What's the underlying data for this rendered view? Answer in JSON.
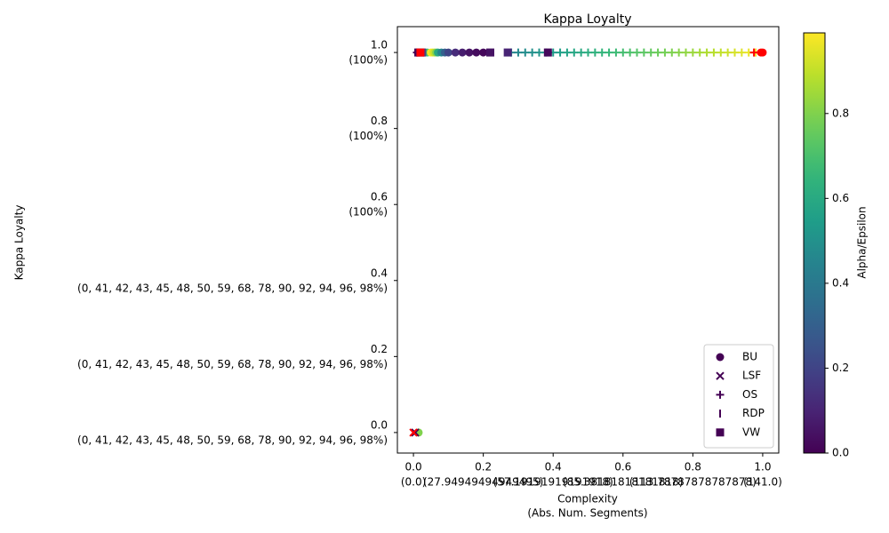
{
  "chart_data": {
    "type": "scatter",
    "title": "Kappa Loyalty",
    "xlabel": [
      "Complexity",
      "(Abs. Num. Segments)"
    ],
    "ylabel": "Kappa Loyalty",
    "xlim": [
      -0.046,
      1.046
    ],
    "ylim": [
      -0.054,
      1.068
    ],
    "xticks": [
      {
        "value": 0,
        "label": [
          "0.0",
          "(0.0)"
        ]
      },
      {
        "value": 0.2,
        "label": [
          "0.2",
          "(27.94949494949495)"
        ]
      },
      {
        "value": 0.4,
        "label": [
          "0.4",
          "(57.19191919191918)"
        ]
      },
      {
        "value": 0.6,
        "label": [
          "0.6",
          "(85.38181818181818)"
        ]
      },
      {
        "value": 0.8,
        "label": [
          "0.8",
          "(113.78787878787878)"
        ]
      },
      {
        "value": 1,
        "label": [
          "1.0",
          "(141.0)"
        ]
      }
    ],
    "yticks": [
      {
        "value": 0,
        "label": [
          "0.0",
          "(0, 41, 42, 43, 45, 48, 50, 59, 68, 78, 90, 92, 94, 96, 98%)"
        ]
      },
      {
        "value": 0.2,
        "label": [
          "0.2",
          "(0, 41, 42, 43, 45, 48, 50, 59, 68, 78, 90, 92, 94, 96, 98%)"
        ]
      },
      {
        "value": 0.4,
        "label": [
          "0.4",
          "(0, 41, 42, 43, 45, 48, 50, 59, 68, 78, 90, 92, 94, 96, 98%)"
        ]
      },
      {
        "value": 0.6,
        "label": [
          "0.6",
          "(100%)"
        ]
      },
      {
        "value": 0.8,
        "label": [
          "0.8",
          "(100%)"
        ]
      },
      {
        "value": 1,
        "label": [
          "1.0",
          "(100%)"
        ]
      }
    ],
    "colorbar": {
      "label": "Alpha/Epsilon",
      "colormap": "viridis",
      "lim": [
        0,
        0.99
      ],
      "ticks": [
        {
          "value": 0,
          "label": "0.0"
        },
        {
          "value": 0.2,
          "label": "0.2"
        },
        {
          "value": 0.4,
          "label": "0.4"
        },
        {
          "value": 0.6,
          "label": "0.6"
        },
        {
          "value": 0.8,
          "label": "0.8"
        }
      ]
    },
    "legend": "lower right",
    "series": [
      {
        "name": "BU",
        "marker": "circle",
        "color": "#440154",
        "x": [
          0.015,
          0.03,
          0.04,
          0.05,
          0.055,
          0.06,
          0.065,
          0.07,
          0.08,
          0.09,
          0.1,
          0.12,
          0.14,
          0.16,
          0.18,
          0.2
        ],
        "values": [
          0,
          1,
          1,
          1,
          1,
          1,
          1,
          1,
          1,
          1,
          1,
          1,
          1,
          1,
          1,
          1
        ],
        "c": [
          0.8,
          0.4,
          0.7,
          0.99,
          0.95,
          0.9,
          0.8,
          0.6,
          0.45,
          0.3,
          0.2,
          0.12,
          0.08,
          0.05,
          0.03,
          0.02
        ]
      },
      {
        "name": "LSF",
        "marker": "x",
        "color": "#440154",
        "x": [
          0.005
        ],
        "values": [
          0
        ],
        "c": [
          0.0
        ]
      },
      {
        "name": "OS",
        "marker": "plus",
        "color": "#440154",
        "x": [
          0.01,
          0.28,
          0.3,
          0.32,
          0.34,
          0.36,
          0.38,
          0.4,
          0.42,
          0.44,
          0.46,
          0.48,
          0.5,
          0.52,
          0.54,
          0.56,
          0.58,
          0.6,
          0.62,
          0.64,
          0.66,
          0.68,
          0.7,
          0.72,
          0.74,
          0.76,
          0.78,
          0.8,
          0.82,
          0.84,
          0.86,
          0.88,
          0.9,
          0.92,
          0.94,
          0.96,
          0.98
        ],
        "values": [
          1,
          1,
          1,
          1,
          1,
          1,
          1,
          1,
          1,
          1,
          1,
          1,
          1,
          1,
          1,
          1,
          1,
          1,
          1,
          1,
          1,
          1,
          1,
          1,
          1,
          1,
          1,
          1,
          1,
          1,
          1,
          1,
          1,
          1,
          1,
          1,
          1
        ],
        "c": [
          0.0,
          0.45,
          0.465,
          0.48,
          0.495,
          0.51,
          0.525,
          0.54,
          0.555,
          0.57,
          0.585,
          0.6,
          0.615,
          0.63,
          0.645,
          0.66,
          0.675,
          0.69,
          0.705,
          0.72,
          0.735,
          0.75,
          0.765,
          0.78,
          0.795,
          0.81,
          0.825,
          0.84,
          0.855,
          0.87,
          0.885,
          0.9,
          0.915,
          0.93,
          0.945,
          0.96,
          0.975
        ]
      },
      {
        "name": "RDP",
        "marker": "vline",
        "color": "#440154",
        "x": [
          0.005,
          0.01,
          0.015
        ],
        "values": [
          1,
          1,
          1
        ],
        "c": [
          0.0,
          0.0,
          0.02
        ]
      },
      {
        "name": "VW",
        "marker": "square",
        "color": "#440154",
        "x": [
          0.02,
          0.025,
          0.22,
          0.27,
          0.385
        ],
        "values": [
          1,
          1,
          1,
          1,
          1
        ],
        "c": [
          0.1,
          0.2,
          0.05,
          0.1,
          0.02
        ]
      }
    ],
    "reference_points": {
      "color": "#ff0000",
      "markers": [
        "circle",
        "circle",
        "plus",
        "x",
        "square"
      ],
      "x": [
        0.995,
        1.0,
        0.975,
        0.0,
        0.02
      ],
      "values": [
        1,
        1,
        1,
        0,
        1
      ]
    }
  }
}
